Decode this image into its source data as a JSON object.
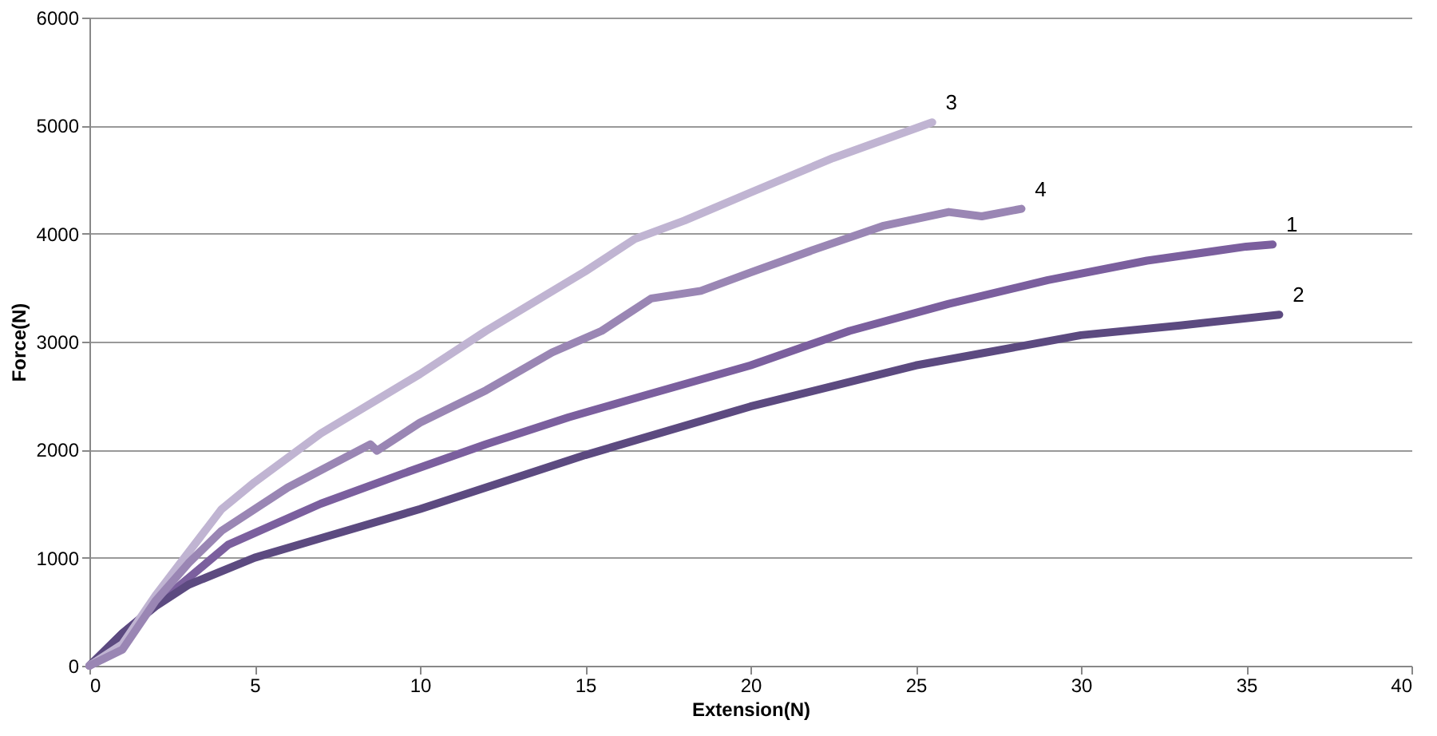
{
  "chart_data": {
    "type": "line",
    "xlabel": "Extension(N)",
    "ylabel": "Force(N)",
    "xlim": [
      0,
      40
    ],
    "xticks": [
      0,
      5,
      10,
      15,
      20,
      25,
      30,
      35,
      40
    ],
    "ylim": [
      0,
      6000
    ],
    "yticks": [
      0,
      1000,
      2000,
      3000,
      4000,
      5000,
      6000
    ],
    "grid": "y",
    "legend": false,
    "series": [
      {
        "name": "1",
        "color": "#7b5f9e",
        "x": [
          0,
          1,
          4.2,
          7,
          9.5,
          12,
          14.5,
          17,
          20,
          23,
          26,
          29,
          32,
          35,
          35.8
        ],
        "values": [
          0,
          300,
          1120,
          1500,
          1780,
          2050,
          2300,
          2520,
          2780,
          3100,
          3350,
          3570,
          3750,
          3880,
          3900
        ]
      },
      {
        "name": "2",
        "color": "#5c4a80",
        "x": [
          0,
          1,
          2,
          3,
          5,
          7,
          10,
          15,
          20,
          25,
          30,
          33,
          36
        ],
        "values": [
          0,
          300,
          550,
          750,
          1000,
          1180,
          1450,
          1950,
          2400,
          2780,
          3060,
          3150,
          3250
        ]
      },
      {
        "name": "3",
        "color": "#c0b4d2",
        "x": [
          0,
          1,
          2,
          3,
          4,
          5,
          7,
          10,
          12,
          15,
          16.5,
          18,
          20,
          22.5,
          25.5
        ],
        "values": [
          0,
          200,
          650,
          1050,
          1450,
          1700,
          2150,
          2700,
          3100,
          3650,
          3950,
          4120,
          4380,
          4700,
          5030
        ]
      },
      {
        "name": "4",
        "color": "#9a86b4",
        "x": [
          0,
          1,
          2,
          3,
          4,
          6,
          8.5,
          8.7,
          10,
          12,
          14,
          15.5,
          17,
          18.5,
          20,
          22,
          24,
          26,
          27,
          28.2
        ],
        "values": [
          0,
          150,
          600,
          950,
          1250,
          1650,
          2050,
          1990,
          2250,
          2550,
          2900,
          3100,
          3400,
          3470,
          3640,
          3860,
          4070,
          4200,
          4160,
          4230
        ]
      }
    ]
  }
}
